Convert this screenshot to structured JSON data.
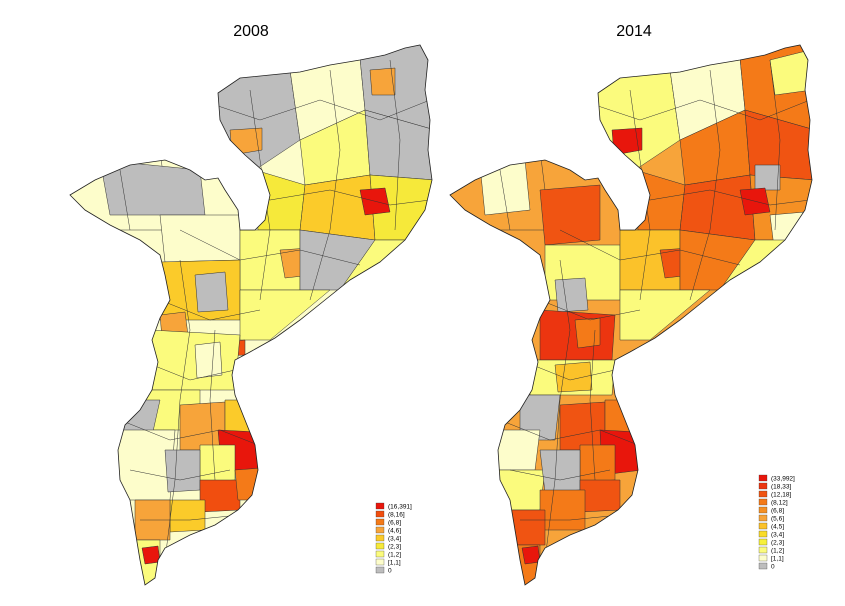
{
  "panels": [
    {
      "title": "2008",
      "legend": [
        {
          "label": "(16,391]",
          "color": "#e8160c"
        },
        {
          "label": "(8,16]",
          "color": "#f14e0f"
        },
        {
          "label": "(6,8]",
          "color": "#f47a18"
        },
        {
          "label": "(4,6]",
          "color": "#f7a43a"
        },
        {
          "label": "(3,4]",
          "color": "#fbcb2a"
        },
        {
          "label": "(2,3]",
          "color": "#f6e93a"
        },
        {
          "label": "(1,2]",
          "color": "#fbfb7d"
        },
        {
          "label": "[1,1]",
          "color": "#fdfdcb"
        },
        {
          "label": "0",
          "color": "#bdbdbd"
        }
      ]
    },
    {
      "title": "2014",
      "legend": [
        {
          "label": "(33,992]",
          "color": "#e8160c"
        },
        {
          "label": "(18,33]",
          "color": "#ec3510"
        },
        {
          "label": "(12,18]",
          "color": "#f05412"
        },
        {
          "label": "(8,12]",
          "color": "#f47a18"
        },
        {
          "label": "(6,8]",
          "color": "#f59024"
        },
        {
          "label": "(5,6]",
          "color": "#f7a43a"
        },
        {
          "label": "(4,5]",
          "color": "#fbc22a"
        },
        {
          "label": "(3,4]",
          "color": "#f9dc2a"
        },
        {
          "label": "(2,3]",
          "color": "#f6f03a"
        },
        {
          "label": "(1,2]",
          "color": "#fbfb7d"
        },
        {
          "label": "[1,1]",
          "color": "#fdfdcb"
        },
        {
          "label": "0",
          "color": "#bdbdbd"
        }
      ]
    }
  ]
}
